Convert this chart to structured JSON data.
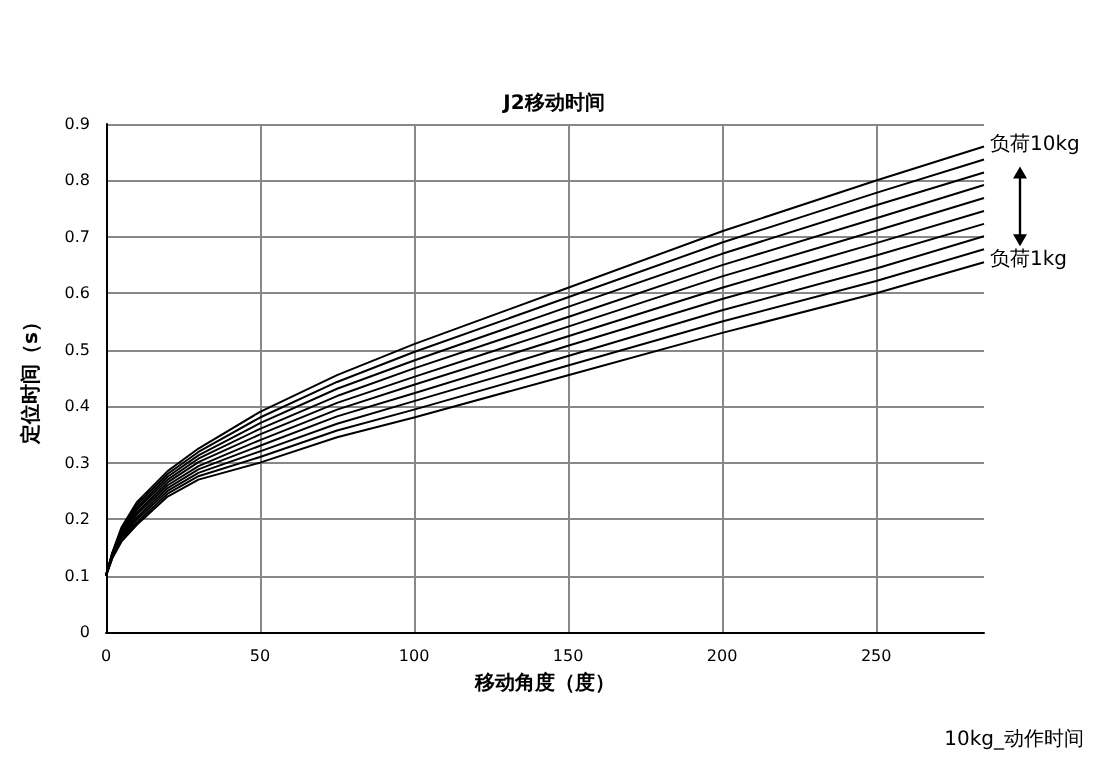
{
  "chart_data": {
    "type": "line",
    "title": "J2移动时间",
    "xlabel": "移动角度（度）",
    "ylabel": "定位时间（s）",
    "x": [
      0,
      2,
      5,
      10,
      20,
      30,
      50,
      75,
      100,
      150,
      200,
      250,
      285
    ],
    "series": [
      {
        "color": "#000000",
        "values": [
          0.1,
          0.14,
          0.185,
          0.23,
          0.285,
          0.325,
          0.39,
          0.455,
          0.51,
          0.61,
          0.71,
          0.8,
          0.86
        ]
      },
      {
        "color": "#000000",
        "values": [
          0.1,
          0.139,
          0.182,
          0.226,
          0.28,
          0.319,
          0.38,
          0.443,
          0.496,
          0.593,
          0.69,
          0.778,
          0.837
        ]
      },
      {
        "color": "#000000",
        "values": [
          0.1,
          0.138,
          0.179,
          0.221,
          0.275,
          0.313,
          0.37,
          0.431,
          0.481,
          0.576,
          0.67,
          0.756,
          0.814
        ]
      },
      {
        "color": "#000000",
        "values": [
          0.1,
          0.137,
          0.177,
          0.217,
          0.27,
          0.307,
          0.36,
          0.418,
          0.467,
          0.558,
          0.65,
          0.733,
          0.792
        ]
      },
      {
        "color": "#000000",
        "values": [
          0.1,
          0.136,
          0.174,
          0.212,
          0.265,
          0.301,
          0.35,
          0.406,
          0.452,
          0.541,
          0.63,
          0.711,
          0.769
        ]
      },
      {
        "color": "#000000",
        "values": [
          0.1,
          0.134,
          0.171,
          0.208,
          0.26,
          0.294,
          0.34,
          0.394,
          0.438,
          0.524,
          0.61,
          0.689,
          0.746
        ]
      },
      {
        "color": "#000000",
        "values": [
          0.1,
          0.133,
          0.168,
          0.203,
          0.255,
          0.288,
          0.33,
          0.382,
          0.423,
          0.507,
          0.59,
          0.667,
          0.723
        ]
      },
      {
        "color": "#000000",
        "values": [
          0.1,
          0.132,
          0.166,
          0.199,
          0.25,
          0.282,
          0.32,
          0.369,
          0.409,
          0.489,
          0.57,
          0.644,
          0.701
        ]
      },
      {
        "color": "#000000",
        "values": [
          0.1,
          0.131,
          0.163,
          0.194,
          0.245,
          0.276,
          0.31,
          0.357,
          0.394,
          0.472,
          0.55,
          0.622,
          0.678
        ]
      },
      {
        "color": "#000000",
        "values": [
          0.1,
          0.13,
          0.16,
          0.19,
          0.24,
          0.27,
          0.3,
          0.345,
          0.38,
          0.455,
          0.53,
          0.6,
          0.655
        ]
      }
    ],
    "xlim": [
      0,
      285
    ],
    "xticks": [
      0,
      50,
      100,
      150,
      200,
      250
    ],
    "ylim": [
      0,
      0.9
    ],
    "yticks": [
      0,
      0.1,
      0.2,
      0.3,
      0.4,
      0.5,
      0.6,
      0.7,
      0.8,
      0.9
    ],
    "grid": true,
    "marker": "none",
    "line_style": "solid",
    "annotations": [
      {
        "text": "负荷10kg",
        "x": 285,
        "y": 0.86
      },
      {
        "text": "负荷1kg",
        "x": 285,
        "y": 0.655
      },
      "10kg_动作时间"
    ]
  }
}
